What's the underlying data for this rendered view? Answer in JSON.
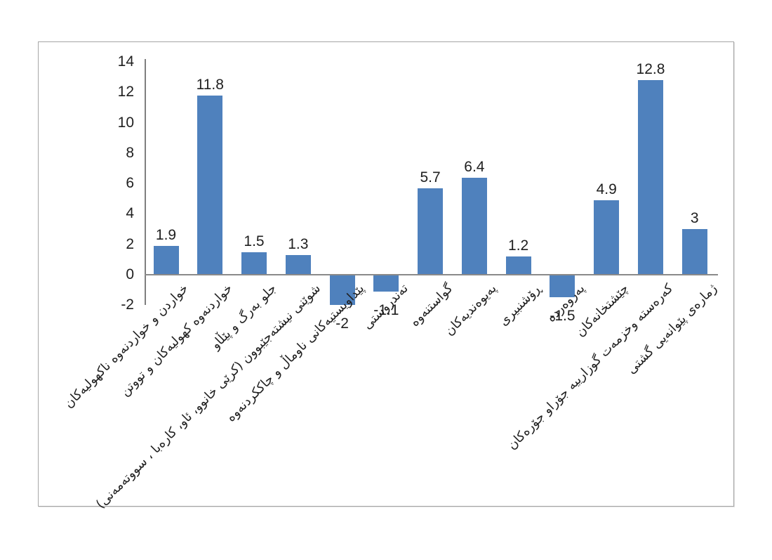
{
  "chart_data": {
    "type": "bar",
    "title": "",
    "xlabel": "",
    "ylabel": "",
    "categories": [
      "خواردن و خواردنەوە ناکهولیەکان",
      "خواردنەوە کهولیەکان و تووتن",
      "جلو بەرگ و پێڵاو",
      "شوێنی نیشتەجێبوون (کرێی خانوو، ئاو، کارەبا ، سووتەمەنی)",
      "پێداویستیەکانی ناوماڵ و چاککردنەوە",
      "تەندروستی",
      "گواستنەوە",
      "پەیوەندیەکان",
      "ڕۆشنبیری",
      "پەروەردە",
      "چێشتخانەکان",
      "کەرەستە وخزمەت گوزارییە جۆراو جۆرەکان",
      "ژمارەی پێوانەیی گشتی"
    ],
    "values": [
      1.9,
      11.8,
      1.5,
      1.3,
      -2,
      -1.1,
      5.7,
      6.4,
      1.2,
      -1.5,
      4.9,
      12.8,
      3
    ],
    "data_labels": [
      "1.9",
      "11.8",
      "1.5",
      "1.3",
      "-2",
      "-1.1",
      "5.7",
      "6.4",
      "1.2",
      "-1.5",
      "4.9",
      "12.8",
      "3"
    ],
    "y_ticks": [
      14,
      12,
      10,
      8,
      6,
      4,
      2,
      0,
      -2
    ],
    "y_tick_labels": [
      "14",
      "12",
      "10",
      "8",
      "6",
      "4",
      "2",
      "0",
      "-2"
    ],
    "ylim": [
      -2,
      14
    ],
    "grid": false,
    "legend": false,
    "bar_color": "#4F81BD",
    "axis_color": "#7f7f7f",
    "zero_line_color": "#8a8a8a",
    "text_color": "#1f1f1f",
    "frame_border_color": "#a6a6a6"
  }
}
